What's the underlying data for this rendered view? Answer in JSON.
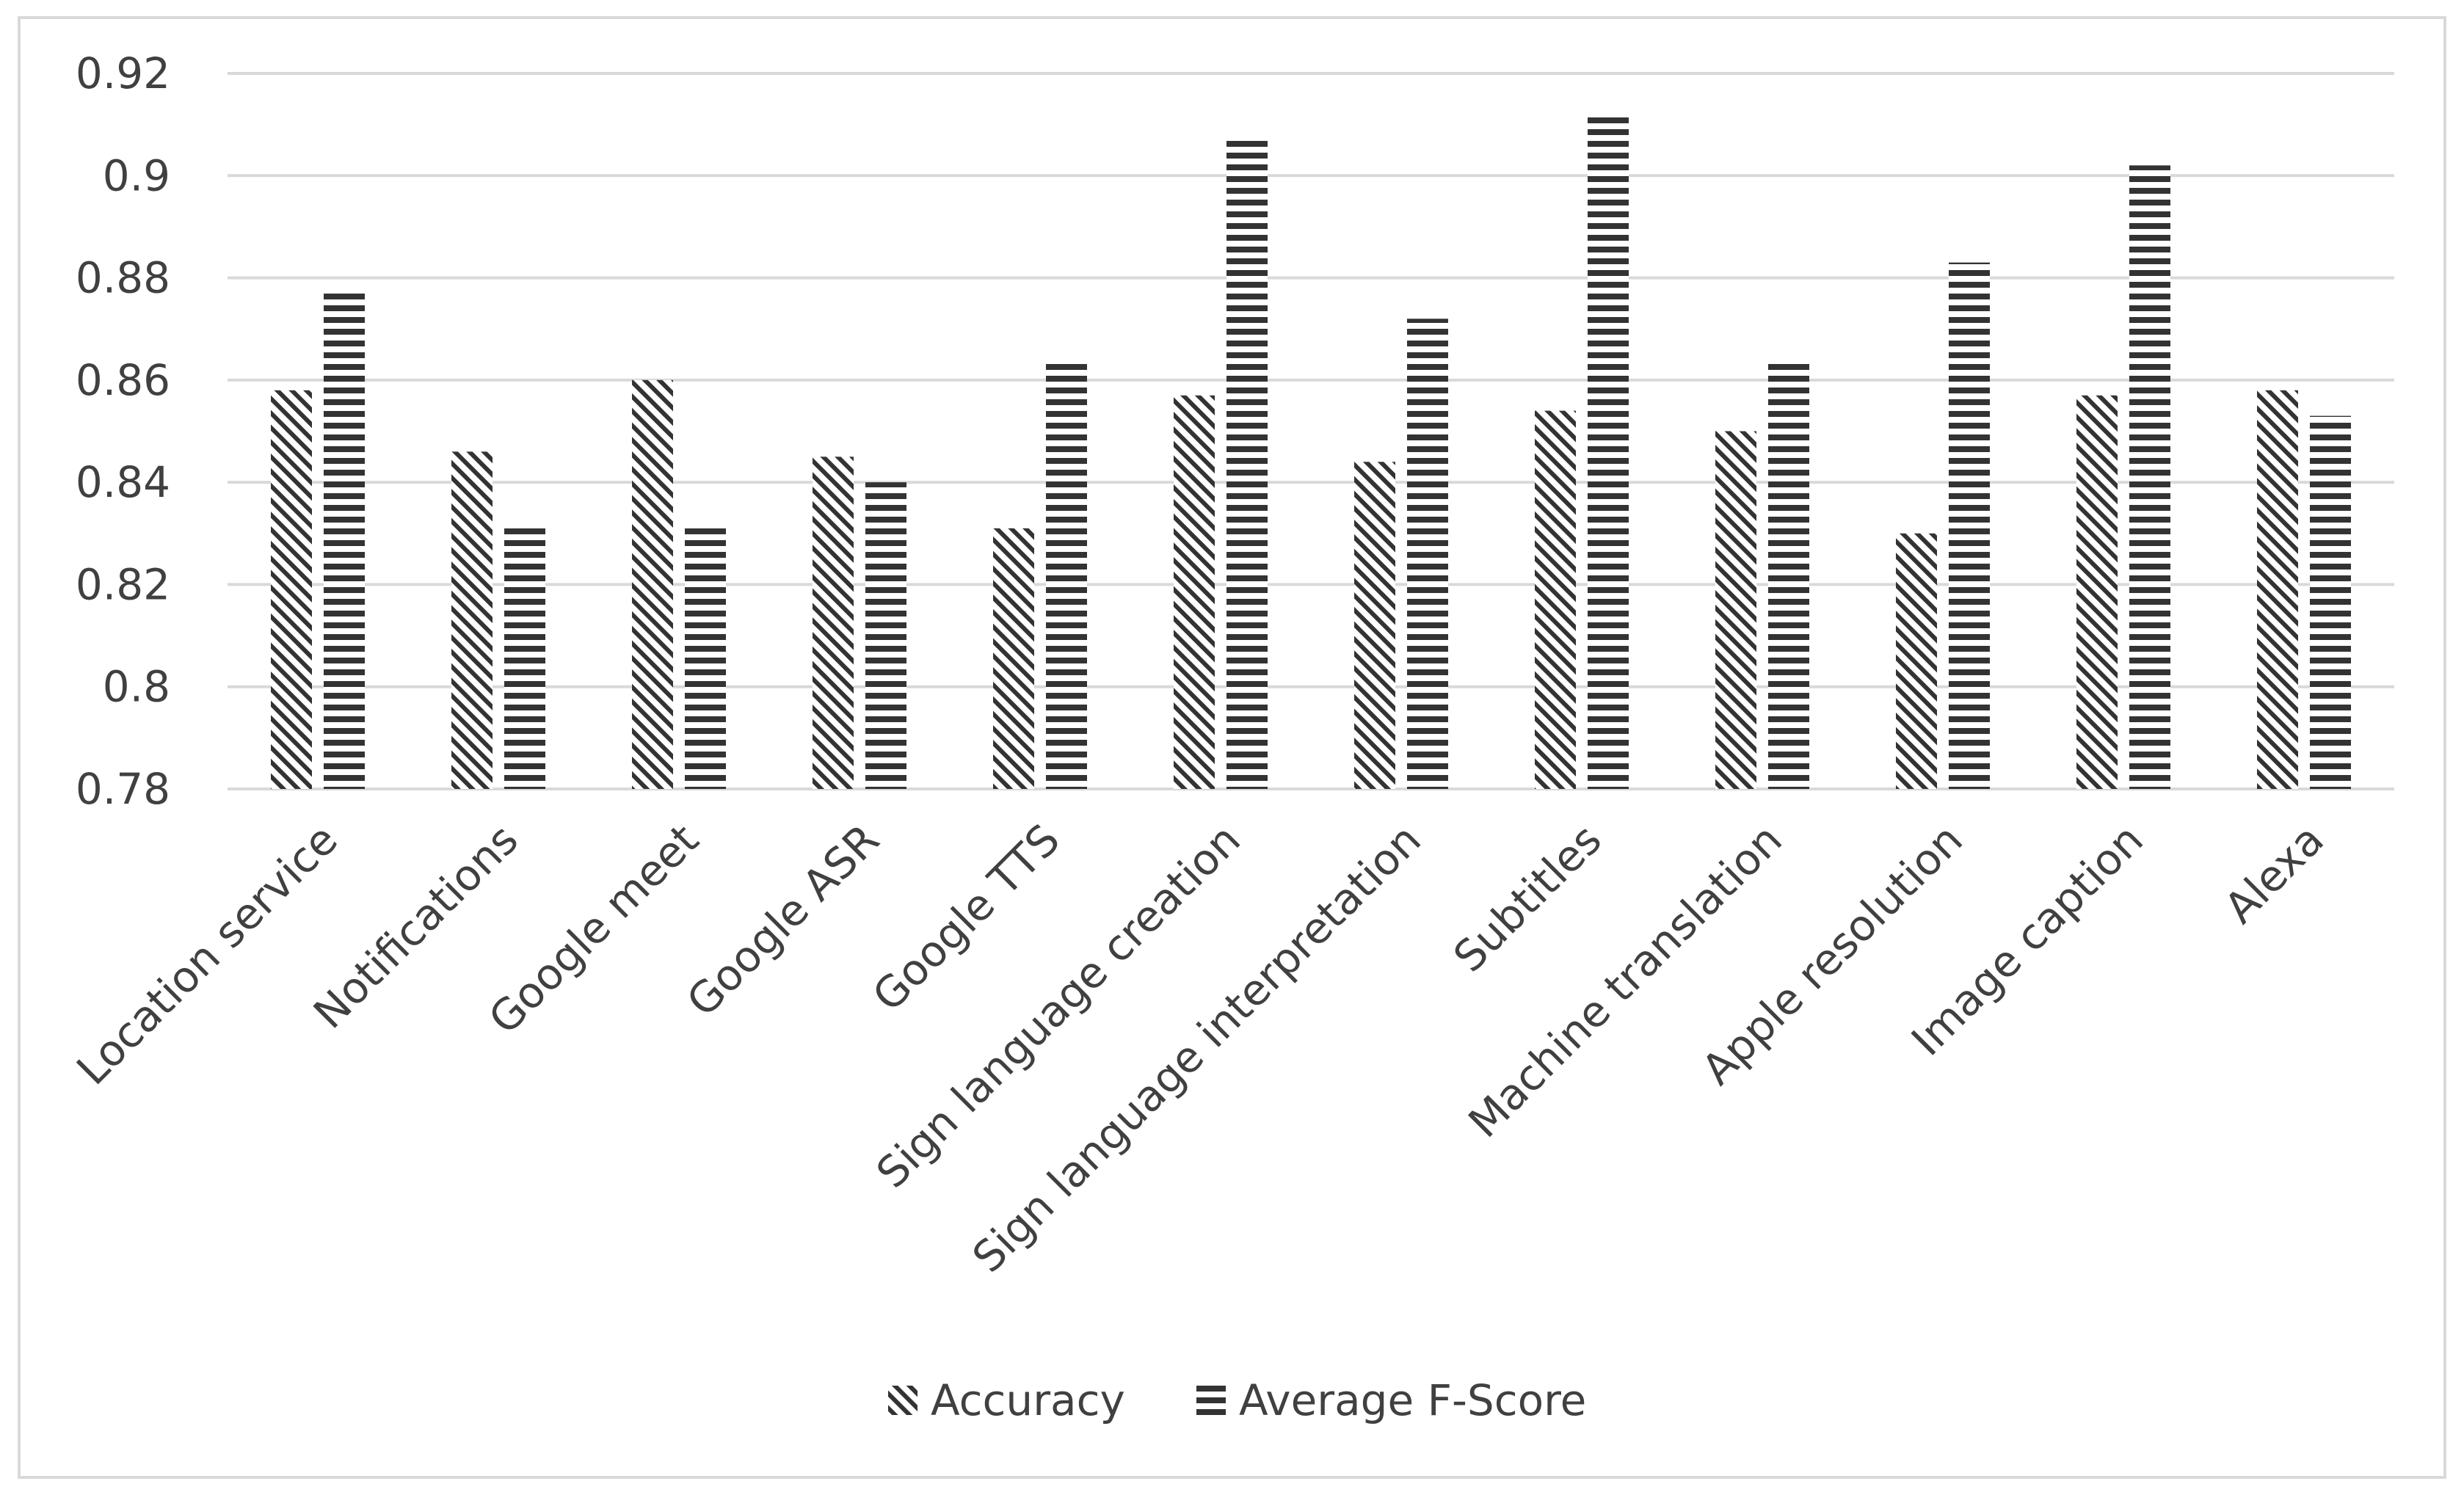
{
  "chart_data": {
    "type": "bar",
    "title": "",
    "xlabel": "",
    "ylabel": "",
    "ylim": [
      0.78,
      0.92
    ],
    "yticks": [
      "0.92",
      "0.9",
      "0.88",
      "0.86",
      "0.84",
      "0.82",
      "0.8",
      "0.78"
    ],
    "grid": "horizontal",
    "legend_position": "bottom",
    "categories": [
      "Location service",
      "Notifications",
      "Google meet",
      "Google ASR",
      "Google TTS",
      "Sign language creation",
      "Sign language interpretation",
      "Subtitles",
      "Machine translation",
      "Apple resolution",
      "Image caption",
      "Alexa"
    ],
    "series": [
      {
        "name": "Accuracy",
        "pattern": "diagonal-hatch",
        "values": [
          0.858,
          0.846,
          0.86,
          0.845,
          0.831,
          0.857,
          0.844,
          0.854,
          0.85,
          0.83,
          0.857,
          0.858
        ]
      },
      {
        "name": "Average F-Score",
        "pattern": "horizontal-lines",
        "values": [
          0.878,
          0.832,
          0.832,
          0.84,
          0.864,
          0.907,
          0.872,
          0.912,
          0.864,
          0.883,
          0.902,
          0.853
        ]
      }
    ],
    "colors": {
      "bar_ink": "#333333",
      "grid": "#d9d9d9",
      "text": "#404040",
      "frame": "#d9d9d9"
    }
  }
}
